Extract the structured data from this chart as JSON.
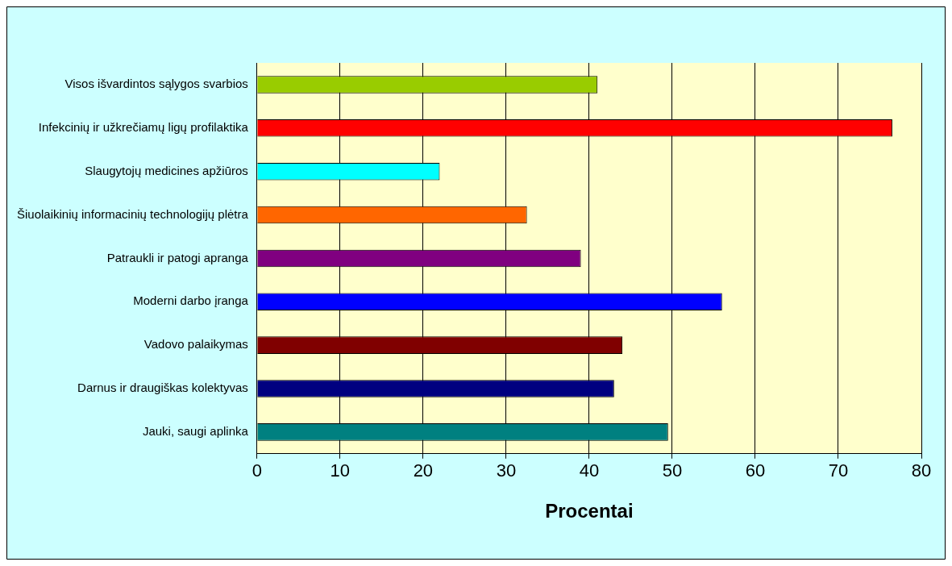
{
  "chart_data": {
    "type": "bar",
    "orientation": "horizontal",
    "xlabel": "Procentai",
    "categories": [
      "Visos išvardintos sąlygos svarbios",
      "Infekcinių ir užkrečiamų ligų profilaktika",
      "Slaugytojų medicines apžiūros",
      "Šiuolaikinių informacinių technologijų plėtra",
      "Patraukli ir patogi apranga",
      "Moderni darbo įranga",
      "Vadovo palaikymas",
      "Darnus ir draugiškas kolektyvas",
      "Jauki, saugi aplinka"
    ],
    "values": [
      41,
      76.5,
      22,
      32.5,
      39,
      56,
      44,
      43,
      49.5
    ],
    "colors": [
      "#99cc00",
      "#ff0000",
      "#00ffff",
      "#ff6600",
      "#800080",
      "#0000ff",
      "#800000",
      "#000080",
      "#008080"
    ],
    "xlim": [
      0,
      80
    ],
    "xticks": [
      0,
      10,
      20,
      30,
      40,
      50,
      60,
      70,
      80
    ],
    "grid": "x",
    "legend": false
  }
}
